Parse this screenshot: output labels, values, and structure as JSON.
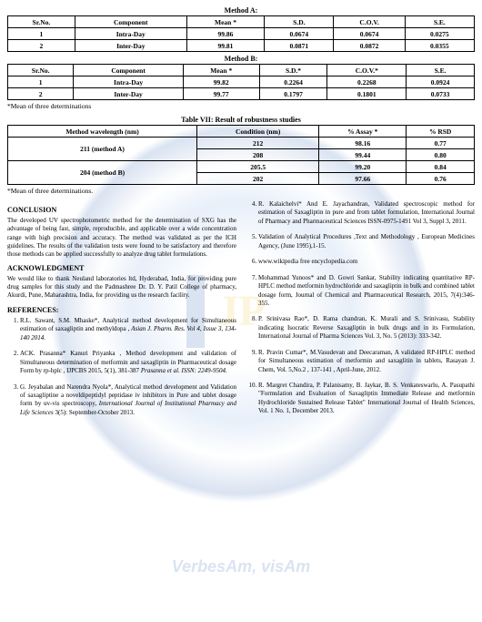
{
  "methodA": {
    "title": "Method A:",
    "headers": [
      "Sr.No.",
      "Component",
      "Mean *",
      "S.D.",
      "C.O.V.",
      "S.E."
    ],
    "rows": [
      [
        "1",
        "Intra-Day",
        "99.86",
        "0.0674",
        "0.0674",
        "0.0275"
      ],
      [
        "2",
        "Inter-Day",
        "99.81",
        "0.0871",
        "0.0872",
        "0.0355"
      ]
    ]
  },
  "methodB": {
    "title": "Method B:",
    "headers": [
      "Sr.No.",
      "Component",
      "Mean *",
      "S.D.*",
      "C.O.V.*",
      "S.E."
    ],
    "rows": [
      [
        "1",
        "Intra-Day",
        "99.82",
        "0.2264",
        "0.2268",
        "0.0924"
      ],
      [
        "2",
        "Inter-Day",
        "99.77",
        "0.1797",
        "0.1801",
        "0.0733"
      ]
    ]
  },
  "foot1": "*Mean of three determinations",
  "table7": {
    "title": "Table VII: Result of robustness studies",
    "headers": [
      "Method wavelength (nm)",
      "Condition (nm)",
      "% Assay *",
      "% RSD"
    ],
    "rows": [
      {
        "wl": "211 (method A)",
        "cond": "212",
        "assay": "98.16",
        "rsd": "0.77",
        "span": 2
      },
      {
        "wl": "",
        "cond": "208",
        "assay": "99.44",
        "rsd": "0.80"
      },
      {
        "wl": "204 (method B)",
        "cond": "205.5",
        "assay": "99.20",
        "rsd": "0.84",
        "span": 2
      },
      {
        "wl": "",
        "cond": "202",
        "assay": "97.66",
        "rsd": "0.76"
      }
    ]
  },
  "foot2": "*Mean of three determinations.",
  "left": {
    "conclusion_h": "CONCLUSION",
    "conclusion": "The developed UV spectrophotometric method for the determination of SXG has the advantage of being fast, simple, reproducible, and applicable over a wide concentration range with high precision and accuracy. The method was validated as per the ICH guidelines. The results of the validation tests were found to be satisfactory and therefore those methods can be applied successfully to analyze drug tablet formulations.",
    "ack_h": "ACKNOWLEDGMENT",
    "ack": "We would like to thank Neuland laboratories ltd, Hyderabad, India, for providing pure drug samples for this study and the Padmashree Dr. D. Y. Patil College of pharmacy, Akurdi, Pune, Maharashtra, India, for providing us the research facility.",
    "ref_h": "REFERENCES:"
  },
  "refs_left": [
    "R.L. Sawant, S.M. Mhaske*, Analytical method development for Simultaneous estimation of saxagliptin and methyldopa , <span class='journal'>Asian J. Pharm. Res. Vol 4, Issue 3, 134-140 2014.</span>",
    "ACK. Prasanna* Kanuri Priyanka , Method development and validation of Simultaneous determination of metformin and saxagliptin in Pharmaceutical dosage Form by rp-hplc , IJPCBS 2015, 5(1), 381-387 <span class='journal'>Prasanna et al. ISSN: 2249-9504.</span>",
    "G. Jeyabalan and Narendra Nyola*, Analytical method development and Validation of saxagliptine a noveldipeptidyl peptidase iv inhibitors in Pure and tablet dosage form by uv-vis spectroscopy, <span class='journal'>International Journal of Institutional Pharmacy and Life Sciences</span> 3(5): September-October 2013."
  ],
  "refs_right": [
    "R. Kalaichelvi* And E. Jayachandran, Validated spectroscopic method for estimation of Saxagliptin in pure and from tablet formulation, International Journal of Pharmacy and Pharmaceutical Sciences ISSN-0975-1491 Vol 3, Suppl 3, 2011.",
    "Validation of Analytical Procedures ,Text and Methodology , European Medicines Agency, (June 1995),1-15.",
    "www.wikipedia free encyclopedia.com",
    "Mohammad Yunoos* and D. Gowri Sankar, Stability indicating quantitative RP-HPLC method metformin hydrochloride and saxagliptin in bulk and combined tablet dosage form, Journal of Chemical and Pharmaceutical Research, 2015, 7(4):346-355.",
    "P. Srinivasa Rao*, D. Rama chandran, K. Murali and S. Srinivasu, Stability indicating Isocratic Reverse Saxagliptin in bulk drugs and in its Formulation, International Journal of Pharma Sciences Vol. 3, No. 5 (2013): 333-342.",
    "R. Pravin Cumar*, M.Vasudevan and Deecaraman, A validated RP-HPLC method for Simultaneous estimation of metformin and saxaglitin in tablets, Rasayan J. Chem, Vol. 5,No.2 , 137-141 , April-June, 2012.",
    "R. Margret Chandira, P. Palanisamy, B. Jaykar, B. S. Venkateswarlu, A. Pasupathi \"Formulation and Evaluation of Saxagliptin Immediate Release and metformin Hydrochloride Sustained Release Tablet\" International Journal of Health Sciences, Vol. 1 No. 1, December 2013."
  ]
}
